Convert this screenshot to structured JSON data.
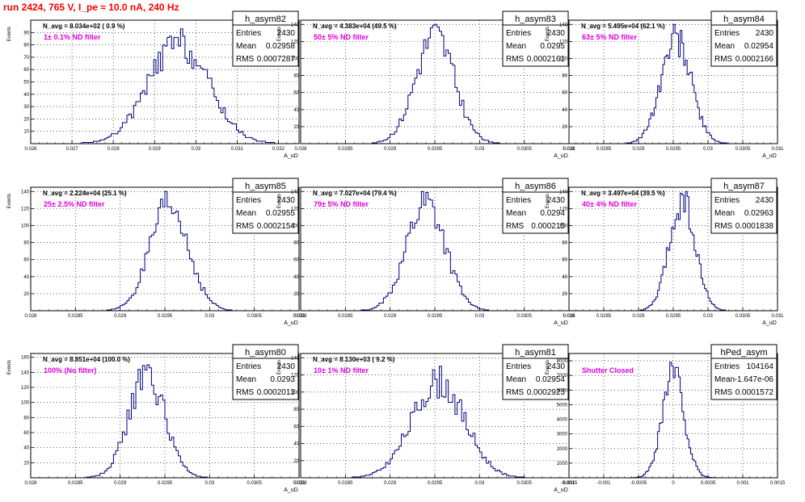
{
  "run_title": "run 2424,   765 V, I_pe ≈ 10.0 nA, 240 Hz",
  "colors": {
    "hist": "#00007f",
    "filter": "#e000e0",
    "title": "#ff0000",
    "grid": "#000000"
  },
  "chart_data": [
    {
      "type": "bar",
      "name": "h_asym82",
      "stats": [
        [
          "Entries",
          "2430"
        ],
        [
          "Mean",
          "0.02958"
        ],
        [
          "RMS",
          "0.0007287"
        ]
      ],
      "navg": "N_avg = 8.034e+02 ( 0.9 %)",
      "filter": "1± 0.1% ND filter",
      "xlim": [
        0.026,
        0.0325
      ],
      "ylim": [
        0,
        100
      ],
      "xticks": [
        {
          "v": 0.026,
          "label": "0.026"
        },
        {
          "v": 0.027,
          "label": "0.027"
        },
        {
          "v": 0.028,
          "label": "0.028"
        },
        {
          "v": 0.029,
          "label": "0.029"
        },
        {
          "v": 0.03,
          "label": "0.03"
        },
        {
          "v": 0.031,
          "label": "0.031"
        },
        {
          "v": 0.032,
          "label": "0.032"
        }
      ],
      "yticks": [
        10,
        20,
        30,
        40,
        50,
        60,
        70,
        80,
        90
      ],
      "ylabel": "Events",
      "xlabel": "A_uD",
      "mean": 0.02958,
      "rms": 0.0007287,
      "entries": 2430,
      "nbins": 120,
      "peak_target": 93,
      "seed": 82
    },
    {
      "type": "bar",
      "name": "h_asym83",
      "stats": [
        [
          "Entries",
          "2430"
        ],
        [
          "Mean",
          "0.0295"
        ],
        [
          "RMS",
          "0.0002161"
        ]
      ],
      "navg": "N_avg = 4.383e+04 (49.5 %)",
      "filter": "50± 5% ND filter",
      "xlim": [
        0.028,
        0.031
      ],
      "ylim": [
        0,
        145
      ],
      "xticks": [
        {
          "v": 0.028,
          "label": "0.028"
        },
        {
          "v": 0.0285,
          "label": "0.0285"
        },
        {
          "v": 0.029,
          "label": "0.029"
        },
        {
          "v": 0.0295,
          "label": "0.0295"
        },
        {
          "v": 0.03,
          "label": "0.03"
        },
        {
          "v": 0.0305,
          "label": "0.0305"
        },
        {
          "v": 0.031,
          "label": "0.031"
        }
      ],
      "yticks": [
        20,
        40,
        60,
        80,
        100,
        120,
        140
      ],
      "ylabel": "Events",
      "xlabel": "A_uD",
      "mean": 0.0295,
      "rms": 0.0002161,
      "entries": 2430,
      "nbins": 120,
      "peak_target": 140,
      "seed": 83
    },
    {
      "type": "bar",
      "name": "h_asym84",
      "stats": [
        [
          "Entries",
          "2430"
        ],
        [
          "Mean",
          "0.02954"
        ],
        [
          "RMS",
          "0.0002166"
        ]
      ],
      "navg": "N_avg = 5.495e+04 (62.1 %)",
      "filter": "63± 5% ND filter",
      "xlim": [
        0.028,
        0.031
      ],
      "ylim": [
        0,
        145
      ],
      "xticks": [
        {
          "v": 0.028,
          "label": "0.028"
        },
        {
          "v": 0.0285,
          "label": "0.0285"
        },
        {
          "v": 0.029,
          "label": "0.029"
        },
        {
          "v": 0.0295,
          "label": "0.0295"
        },
        {
          "v": 0.03,
          "label": "0.03"
        },
        {
          "v": 0.0305,
          "label": "0.0305"
        },
        {
          "v": 0.031,
          "label": "0.031"
        }
      ],
      "yticks": [
        20,
        40,
        60,
        80,
        100,
        120,
        140
      ],
      "ylabel": "Events",
      "xlabel": "A_uD",
      "mean": 0.02954,
      "rms": 0.0002166,
      "entries": 2430,
      "nbins": 120,
      "peak_target": 140,
      "seed": 84
    },
    {
      "type": "bar",
      "name": "h_asym85",
      "stats": [
        [
          "Entries",
          "2430"
        ],
        [
          "Mean",
          "0.02955"
        ],
        [
          "RMS",
          "0.0002154"
        ]
      ],
      "navg": "N_avg = 2.224e+04 (25.1 %)",
      "filter": "25± 2.5% ND filter",
      "xlim": [
        0.028,
        0.031
      ],
      "ylim": [
        0,
        145
      ],
      "xticks": [
        {
          "v": 0.028,
          "label": "0.028"
        },
        {
          "v": 0.0285,
          "label": "0.0285"
        },
        {
          "v": 0.029,
          "label": "0.029"
        },
        {
          "v": 0.0295,
          "label": "0.0295"
        },
        {
          "v": 0.03,
          "label": "0.03"
        },
        {
          "v": 0.0305,
          "label": "0.0305"
        },
        {
          "v": 0.031,
          "label": "0.031"
        }
      ],
      "yticks": [
        20,
        40,
        60,
        80,
        100,
        120,
        140
      ],
      "ylabel": "Events",
      "xlabel": "A_uD",
      "mean": 0.02955,
      "rms": 0.0002154,
      "entries": 2430,
      "nbins": 120,
      "peak_target": 140,
      "seed": 85
    },
    {
      "type": "bar",
      "name": "h_asym86",
      "stats": [
        [
          "Entries",
          "2430"
        ],
        [
          "Mean",
          "0.0294"
        ],
        [
          "RMS",
          "0.000215"
        ]
      ],
      "navg": "N_avg = 7.027e+04 (79.4 %)",
      "filter": "79± 5% ND filter",
      "xlim": [
        0.028,
        0.031
      ],
      "ylim": [
        0,
        145
      ],
      "xticks": [
        {
          "v": 0.028,
          "label": "0.028"
        },
        {
          "v": 0.0285,
          "label": "0.0285"
        },
        {
          "v": 0.029,
          "label": "0.029"
        },
        {
          "v": 0.0295,
          "label": "0.0295"
        },
        {
          "v": 0.03,
          "label": "0.03"
        },
        {
          "v": 0.0305,
          "label": "0.0305"
        },
        {
          "v": 0.031,
          "label": "0.031"
        }
      ],
      "yticks": [
        20,
        40,
        60,
        80,
        100,
        120,
        140
      ],
      "ylabel": "Events",
      "xlabel": "A_uD",
      "mean": 0.0294,
      "rms": 0.000215,
      "entries": 2430,
      "nbins": 120,
      "peak_target": 140,
      "seed": 86
    },
    {
      "type": "bar",
      "name": "h_asym87",
      "stats": [
        [
          "Entries",
          "2430"
        ],
        [
          "Mean",
          "0.02963"
        ],
        [
          "RMS",
          "0.0001838"
        ]
      ],
      "navg": "N_avg = 3.497e+04 (39.5 %)",
      "filter": "40± 4% ND filter",
      "xlim": [
        0.028,
        0.031
      ],
      "ylim": [
        0,
        145
      ],
      "xticks": [
        {
          "v": 0.028,
          "label": "0.028"
        },
        {
          "v": 0.0285,
          "label": "0.0285"
        },
        {
          "v": 0.029,
          "label": "0.029"
        },
        {
          "v": 0.0295,
          "label": "0.0295"
        },
        {
          "v": 0.03,
          "label": "0.03"
        },
        {
          "v": 0.0305,
          "label": "0.0305"
        },
        {
          "v": 0.031,
          "label": "0.031"
        }
      ],
      "yticks": [
        20,
        40,
        60,
        80,
        100,
        120,
        140
      ],
      "ylabel": "Events",
      "xlabel": "A_uD",
      "mean": 0.02963,
      "rms": 0.0001838,
      "entries": 2430,
      "nbins": 120,
      "peak_target": 140,
      "seed": 87
    },
    {
      "type": "bar",
      "name": "h_asym80",
      "stats": [
        [
          "Entries",
          "2430"
        ],
        [
          "Mean",
          "0.0293"
        ],
        [
          "RMS",
          "0.0002013"
        ]
      ],
      "navg": "N_avg = 8.851e+04 (100.0 %)",
      "filter": "100% (No filter)",
      "xlim": [
        0.028,
        0.031
      ],
      "ylim": [
        0,
        165
      ],
      "xticks": [
        {
          "v": 0.028,
          "label": "0.028"
        },
        {
          "v": 0.0285,
          "label": "0.0285"
        },
        {
          "v": 0.029,
          "label": "0.029"
        },
        {
          "v": 0.0295,
          "label": "0.0295"
        },
        {
          "v": 0.03,
          "label": "0.03"
        },
        {
          "v": 0.0305,
          "label": "0.0305"
        },
        {
          "v": 0.031,
          "label": "0.031"
        }
      ],
      "yticks": [
        20,
        40,
        60,
        80,
        100,
        120,
        140,
        160
      ],
      "ylabel": "Events",
      "xlabel": "A_uD",
      "mean": 0.0293,
      "rms": 0.0002013,
      "entries": 2430,
      "nbins": 120,
      "peak_target": 150,
      "seed": 80
    },
    {
      "type": "bar",
      "name": "h_asym81",
      "stats": [
        [
          "Entries",
          "2430"
        ],
        [
          "Mean",
          "0.02954"
        ],
        [
          "RMS",
          "0.0002923"
        ]
      ],
      "navg": "N_avg = 8.130e+03 ( 9.2 %)",
      "filter": "10± 1% ND filter",
      "xlim": [
        0.028,
        0.031
      ],
      "ylim": [
        0,
        145
      ],
      "xticks": [
        {
          "v": 0.028,
          "label": "0.028"
        },
        {
          "v": 0.0285,
          "label": "0.0285"
        },
        {
          "v": 0.029,
          "label": "0.029"
        },
        {
          "v": 0.0295,
          "label": "0.0295"
        },
        {
          "v": 0.03,
          "label": "0.03"
        },
        {
          "v": 0.0305,
          "label": "0.0305"
        },
        {
          "v": 0.031,
          "label": "0.031"
        }
      ],
      "yticks": [
        20,
        40,
        60,
        80,
        100,
        120,
        140
      ],
      "ylabel": "Events",
      "xlabel": "A_uD",
      "mean": 0.02954,
      "rms": 0.0002923,
      "entries": 2430,
      "nbins": 120,
      "peak_target": 130,
      "seed": 81
    },
    {
      "type": "bar",
      "name": "hPed_asym",
      "stats": [
        [
          "Entries",
          "104164"
        ],
        [
          "Mean",
          "-1.647e-06"
        ],
        [
          "RMS",
          "0.0001572"
        ]
      ],
      "navg": "",
      "filter": "Shutter Closed",
      "xlim": [
        -0.0015,
        0.0015
      ],
      "ylim": [
        0,
        8500
      ],
      "xticks": [
        {
          "v": -0.0015,
          "label": "-0.0015"
        },
        {
          "v": -0.001,
          "label": "-0.001"
        },
        {
          "v": -0.0005,
          "label": "-0.0005"
        },
        {
          "v": 0,
          "label": "0"
        },
        {
          "v": 0.0005,
          "label": "0.0005"
        },
        {
          "v": 0.001,
          "label": "0.001"
        },
        {
          "v": 0.0015,
          "label": "0.0015"
        }
      ],
      "yticks": [
        1000,
        2000,
        3000,
        4000,
        5000,
        6000,
        7000,
        8000
      ],
      "ylabel": "Events",
      "xlabel": "",
      "mean": -1.647e-06,
      "rms": 0.0001572,
      "entries": 104164,
      "nbins": 120,
      "peak_target": 7900,
      "seed": 99
    }
  ]
}
